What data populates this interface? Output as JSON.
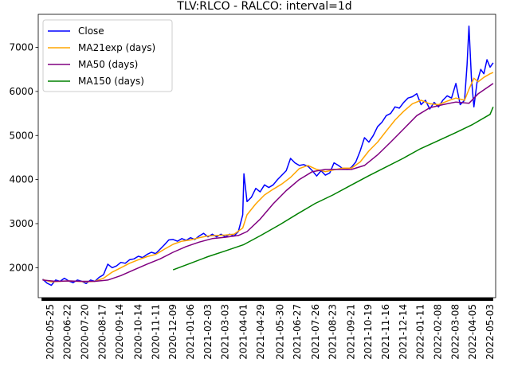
{
  "chart_data": {
    "type": "line",
    "title": "TLV:RLCO - RALCO: interval=1d",
    "xlabel": "",
    "ylabel": "",
    "x_start": "2020-05-06",
    "x_end": "2022-05-12",
    "ylim": [
      1320,
      7750
    ],
    "yticks": [
      2000,
      3000,
      4000,
      5000,
      6000,
      7000
    ],
    "xticks": [
      "2020-05-25",
      "2020-06-22",
      "2020-07-20",
      "2020-08-17",
      "2020-09-14",
      "2020-10-14",
      "2020-11-11",
      "2020-12-09",
      "2021-01-06",
      "2021-02-03",
      "2021-03-03",
      "2021-04-01",
      "2021-04-29",
      "2021-05-30",
      "2021-06-27",
      "2021-07-26",
      "2021-08-23",
      "2021-09-21",
      "2021-10-19",
      "2021-11-16",
      "2021-12-14",
      "2022-01-11",
      "2022-02-08",
      "2022-03-08",
      "2022-04-05",
      "2022-05-03"
    ],
    "grid": false,
    "legend": "top-left",
    "series": [
      {
        "name": "Close",
        "color": "#0000ff",
        "points": [
          [
            "2020-05-13",
            1740
          ],
          [
            "2020-05-20",
            1650
          ],
          [
            "2020-05-27",
            1600
          ],
          [
            "2020-06-03",
            1720
          ],
          [
            "2020-06-10",
            1690
          ],
          [
            "2020-06-17",
            1760
          ],
          [
            "2020-06-24",
            1700
          ],
          [
            "2020-07-01",
            1660
          ],
          [
            "2020-07-08",
            1720
          ],
          [
            "2020-07-15",
            1690
          ],
          [
            "2020-07-22",
            1640
          ],
          [
            "2020-07-29",
            1720
          ],
          [
            "2020-08-05",
            1690
          ],
          [
            "2020-08-12",
            1780
          ],
          [
            "2020-08-19",
            1840
          ],
          [
            "2020-08-26",
            2080
          ],
          [
            "2020-09-02",
            2000
          ],
          [
            "2020-09-09",
            2040
          ],
          [
            "2020-09-16",
            2120
          ],
          [
            "2020-09-23",
            2100
          ],
          [
            "2020-09-30",
            2180
          ],
          [
            "2020-10-07",
            2200
          ],
          [
            "2020-10-14",
            2260
          ],
          [
            "2020-10-21",
            2230
          ],
          [
            "2020-10-28",
            2300
          ],
          [
            "2020-11-04",
            2350
          ],
          [
            "2020-11-11",
            2320
          ],
          [
            "2020-11-18",
            2420
          ],
          [
            "2020-11-25",
            2520
          ],
          [
            "2020-12-02",
            2630
          ],
          [
            "2020-12-09",
            2640
          ],
          [
            "2020-12-16",
            2600
          ],
          [
            "2020-12-23",
            2660
          ],
          [
            "2020-12-30",
            2620
          ],
          [
            "2021-01-06",
            2680
          ],
          [
            "2021-01-13",
            2640
          ],
          [
            "2021-01-20",
            2720
          ],
          [
            "2021-01-27",
            2780
          ],
          [
            "2021-02-03",
            2700
          ],
          [
            "2021-02-10",
            2760
          ],
          [
            "2021-02-17",
            2700
          ],
          [
            "2021-02-24",
            2760
          ],
          [
            "2021-03-03",
            2700
          ],
          [
            "2021-03-10",
            2760
          ],
          [
            "2021-03-17",
            2720
          ],
          [
            "2021-03-24",
            2820
          ],
          [
            "2021-03-31",
            3200
          ],
          [
            "2021-04-02",
            4130
          ],
          [
            "2021-04-07",
            3500
          ],
          [
            "2021-04-14",
            3600
          ],
          [
            "2021-04-21",
            3800
          ],
          [
            "2021-04-28",
            3720
          ],
          [
            "2021-05-05",
            3880
          ],
          [
            "2021-05-12",
            3820
          ],
          [
            "2021-05-19",
            3880
          ],
          [
            "2021-05-26",
            4000
          ],
          [
            "2021-06-02",
            4100
          ],
          [
            "2021-06-09",
            4200
          ],
          [
            "2021-06-16",
            4480
          ],
          [
            "2021-06-23",
            4380
          ],
          [
            "2021-06-30",
            4320
          ],
          [
            "2021-07-07",
            4340
          ],
          [
            "2021-07-14",
            4300
          ],
          [
            "2021-07-21",
            4200
          ],
          [
            "2021-07-28",
            4080
          ],
          [
            "2021-08-04",
            4200
          ],
          [
            "2021-08-11",
            4100
          ],
          [
            "2021-08-18",
            4150
          ],
          [
            "2021-08-25",
            4380
          ],
          [
            "2021-09-01",
            4320
          ],
          [
            "2021-09-08",
            4250
          ],
          [
            "2021-09-15",
            4230
          ],
          [
            "2021-09-22",
            4280
          ],
          [
            "2021-09-29",
            4400
          ],
          [
            "2021-10-06",
            4650
          ],
          [
            "2021-10-13",
            4950
          ],
          [
            "2021-10-20",
            4850
          ],
          [
            "2021-10-27",
            5000
          ],
          [
            "2021-11-03",
            5200
          ],
          [
            "2021-11-10",
            5300
          ],
          [
            "2021-11-17",
            5450
          ],
          [
            "2021-11-24",
            5500
          ],
          [
            "2021-12-01",
            5650
          ],
          [
            "2021-12-08",
            5620
          ],
          [
            "2021-12-15",
            5750
          ],
          [
            "2021-12-22",
            5850
          ],
          [
            "2021-12-29",
            5880
          ],
          [
            "2022-01-05",
            5950
          ],
          [
            "2022-01-12",
            5700
          ],
          [
            "2022-01-19",
            5800
          ],
          [
            "2022-01-26",
            5600
          ],
          [
            "2022-02-02",
            5750
          ],
          [
            "2022-02-09",
            5650
          ],
          [
            "2022-02-16",
            5800
          ],
          [
            "2022-02-23",
            5900
          ],
          [
            "2022-03-02",
            5850
          ],
          [
            "2022-03-09",
            6180
          ],
          [
            "2022-03-16",
            5700
          ],
          [
            "2022-03-23",
            5800
          ],
          [
            "2022-03-27",
            6600
          ],
          [
            "2022-03-30",
            7480
          ],
          [
            "2022-04-03",
            6300
          ],
          [
            "2022-04-07",
            5650
          ],
          [
            "2022-04-12",
            6200
          ],
          [
            "2022-04-18",
            6500
          ],
          [
            "2022-04-23",
            6400
          ],
          [
            "2022-04-28",
            6720
          ],
          [
            "2022-05-03",
            6550
          ],
          [
            "2022-05-08",
            6650
          ]
        ]
      },
      {
        "name": "MA21exp (days)",
        "color": "#ffa500",
        "points": [
          [
            "2020-05-13",
            1730
          ],
          [
            "2020-05-27",
            1680
          ],
          [
            "2020-06-10",
            1690
          ],
          [
            "2020-06-24",
            1700
          ],
          [
            "2020-07-08",
            1690
          ],
          [
            "2020-07-22",
            1680
          ],
          [
            "2020-08-05",
            1690
          ],
          [
            "2020-08-19",
            1760
          ],
          [
            "2020-09-02",
            1900
          ],
          [
            "2020-09-16",
            2000
          ],
          [
            "2020-09-30",
            2100
          ],
          [
            "2020-10-14",
            2180
          ],
          [
            "2020-10-28",
            2250
          ],
          [
            "2020-11-11",
            2300
          ],
          [
            "2020-11-25",
            2420
          ],
          [
            "2020-12-09",
            2530
          ],
          [
            "2020-12-23",
            2600
          ],
          [
            "2021-01-06",
            2630
          ],
          [
            "2021-01-20",
            2680
          ],
          [
            "2021-02-03",
            2720
          ],
          [
            "2021-02-17",
            2730
          ],
          [
            "2021-03-03",
            2740
          ],
          [
            "2021-03-17",
            2760
          ],
          [
            "2021-03-31",
            2900
          ],
          [
            "2021-04-07",
            3200
          ],
          [
            "2021-04-21",
            3450
          ],
          [
            "2021-05-05",
            3650
          ],
          [
            "2021-05-19",
            3780
          ],
          [
            "2021-06-02",
            3900
          ],
          [
            "2021-06-16",
            4050
          ],
          [
            "2021-06-30",
            4250
          ],
          [
            "2021-07-14",
            4320
          ],
          [
            "2021-07-28",
            4230
          ],
          [
            "2021-08-11",
            4180
          ],
          [
            "2021-08-25",
            4220
          ],
          [
            "2021-09-08",
            4260
          ],
          [
            "2021-09-22",
            4260
          ],
          [
            "2021-10-06",
            4400
          ],
          [
            "2021-10-20",
            4650
          ],
          [
            "2021-11-03",
            4850
          ],
          [
            "2021-11-17",
            5100
          ],
          [
            "2021-12-01",
            5350
          ],
          [
            "2021-12-15",
            5550
          ],
          [
            "2021-12-29",
            5720
          ],
          [
            "2022-01-12",
            5800
          ],
          [
            "2022-01-26",
            5720
          ],
          [
            "2022-02-09",
            5700
          ],
          [
            "2022-02-23",
            5780
          ],
          [
            "2022-03-09",
            5850
          ],
          [
            "2022-03-23",
            5800
          ],
          [
            "2022-03-30",
            6050
          ],
          [
            "2022-04-07",
            6300
          ],
          [
            "2022-04-14",
            6220
          ],
          [
            "2022-04-23",
            6320
          ],
          [
            "2022-05-03",
            6400
          ],
          [
            "2022-05-08",
            6430
          ]
        ]
      },
      {
        "name": "MA50 (days)",
        "color": "#800080",
        "points": [
          [
            "2020-05-13",
            1720
          ],
          [
            "2020-06-03",
            1690
          ],
          [
            "2020-06-24",
            1700
          ],
          [
            "2020-07-15",
            1690
          ],
          [
            "2020-08-05",
            1690
          ],
          [
            "2020-08-26",
            1720
          ],
          [
            "2020-09-16",
            1820
          ],
          [
            "2020-10-07",
            1950
          ],
          [
            "2020-10-28",
            2080
          ],
          [
            "2020-11-18",
            2200
          ],
          [
            "2020-12-09",
            2350
          ],
          [
            "2020-12-30",
            2480
          ],
          [
            "2021-01-20",
            2580
          ],
          [
            "2021-02-10",
            2660
          ],
          [
            "2021-03-03",
            2690
          ],
          [
            "2021-03-24",
            2730
          ],
          [
            "2021-04-07",
            2820
          ],
          [
            "2021-04-28",
            3100
          ],
          [
            "2021-05-19",
            3450
          ],
          [
            "2021-06-09",
            3750
          ],
          [
            "2021-06-30",
            4000
          ],
          [
            "2021-07-21",
            4180
          ],
          [
            "2021-08-11",
            4230
          ],
          [
            "2021-09-01",
            4230
          ],
          [
            "2021-09-22",
            4230
          ],
          [
            "2021-10-13",
            4320
          ],
          [
            "2021-11-03",
            4560
          ],
          [
            "2021-11-24",
            4850
          ],
          [
            "2021-12-15",
            5150
          ],
          [
            "2022-01-05",
            5450
          ],
          [
            "2022-01-26",
            5630
          ],
          [
            "2022-02-16",
            5700
          ],
          [
            "2022-03-09",
            5760
          ],
          [
            "2022-03-30",
            5730
          ],
          [
            "2022-04-14",
            5950
          ],
          [
            "2022-05-08",
            6180
          ]
        ]
      },
      {
        "name": "MA150 (days)",
        "color": "#008000",
        "points": [
          [
            "2020-12-09",
            1950
          ],
          [
            "2021-01-06",
            2100
          ],
          [
            "2021-02-03",
            2250
          ],
          [
            "2021-03-03",
            2380
          ],
          [
            "2021-04-01",
            2520
          ],
          [
            "2021-04-29",
            2730
          ],
          [
            "2021-05-30",
            2980
          ],
          [
            "2021-06-27",
            3220
          ],
          [
            "2021-07-26",
            3460
          ],
          [
            "2021-08-23",
            3650
          ],
          [
            "2021-09-21",
            3870
          ],
          [
            "2021-10-19",
            4080
          ],
          [
            "2021-11-16",
            4280
          ],
          [
            "2021-12-14",
            4480
          ],
          [
            "2022-01-11",
            4700
          ],
          [
            "2022-02-08",
            4880
          ],
          [
            "2022-03-08",
            5060
          ],
          [
            "2022-04-05",
            5250
          ],
          [
            "2022-05-03",
            5480
          ],
          [
            "2022-05-08",
            5650
          ]
        ]
      }
    ]
  }
}
